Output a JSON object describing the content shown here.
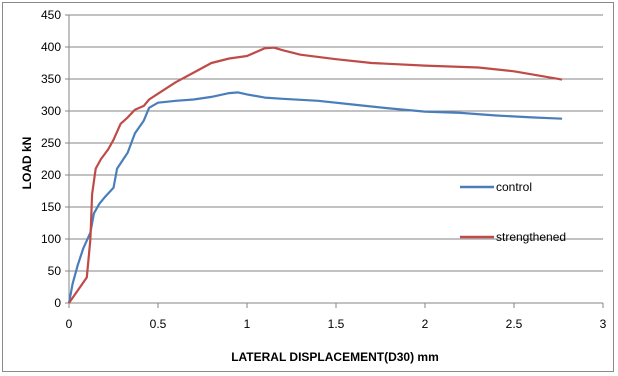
{
  "chart_data": {
    "type": "line",
    "title": "",
    "xlabel": "LATERAL DISPLACEMENT(D30) mm",
    "ylabel": "LOAD kN",
    "xlim": [
      0,
      3
    ],
    "ylim": [
      0,
      450
    ],
    "x_ticks": [
      "0",
      "0.5",
      "1",
      "1.5",
      "2",
      "2.5",
      "3"
    ],
    "y_ticks": [
      "0",
      "50",
      "100",
      "150",
      "200",
      "250",
      "300",
      "350",
      "400",
      "450"
    ],
    "grid": "horizontal",
    "legend_position": "right",
    "series": [
      {
        "name": "control",
        "color": "#4a7ebb",
        "points": [
          [
            0,
            0
          ],
          [
            0.02,
            30
          ],
          [
            0.05,
            60
          ],
          [
            0.08,
            85
          ],
          [
            0.12,
            110
          ],
          [
            0.14,
            140
          ],
          [
            0.17,
            155
          ],
          [
            0.2,
            165
          ],
          [
            0.25,
            180
          ],
          [
            0.27,
            210
          ],
          [
            0.33,
            235
          ],
          [
            0.37,
            265
          ],
          [
            0.42,
            285
          ],
          [
            0.45,
            305
          ],
          [
            0.5,
            313
          ],
          [
            0.6,
            316
          ],
          [
            0.7,
            318
          ],
          [
            0.8,
            322
          ],
          [
            0.9,
            328
          ],
          [
            0.95,
            329
          ],
          [
            1.0,
            326
          ],
          [
            1.1,
            321
          ],
          [
            1.2,
            319
          ],
          [
            1.4,
            316
          ],
          [
            1.6,
            310
          ],
          [
            1.8,
            304
          ],
          [
            2.0,
            299
          ],
          [
            2.2,
            297
          ],
          [
            2.4,
            293
          ],
          [
            2.6,
            290
          ],
          [
            2.77,
            288
          ]
        ]
      },
      {
        "name": "strengthened",
        "color": "#be4b48",
        "points": [
          [
            0,
            0
          ],
          [
            0.05,
            20
          ],
          [
            0.1,
            40
          ],
          [
            0.12,
            100
          ],
          [
            0.13,
            170
          ],
          [
            0.15,
            210
          ],
          [
            0.18,
            225
          ],
          [
            0.22,
            240
          ],
          [
            0.25,
            255
          ],
          [
            0.29,
            280
          ],
          [
            0.33,
            290
          ],
          [
            0.37,
            302
          ],
          [
            0.42,
            308
          ],
          [
            0.45,
            318
          ],
          [
            0.5,
            327
          ],
          [
            0.6,
            345
          ],
          [
            0.7,
            360
          ],
          [
            0.8,
            375
          ],
          [
            0.9,
            382
          ],
          [
            1.0,
            386
          ],
          [
            1.05,
            392
          ],
          [
            1.1,
            398
          ],
          [
            1.15,
            399
          ],
          [
            1.2,
            395
          ],
          [
            1.3,
            388
          ],
          [
            1.5,
            381
          ],
          [
            1.7,
            375
          ],
          [
            2.0,
            371
          ],
          [
            2.3,
            368
          ],
          [
            2.5,
            362
          ],
          [
            2.77,
            349
          ]
        ]
      }
    ]
  }
}
